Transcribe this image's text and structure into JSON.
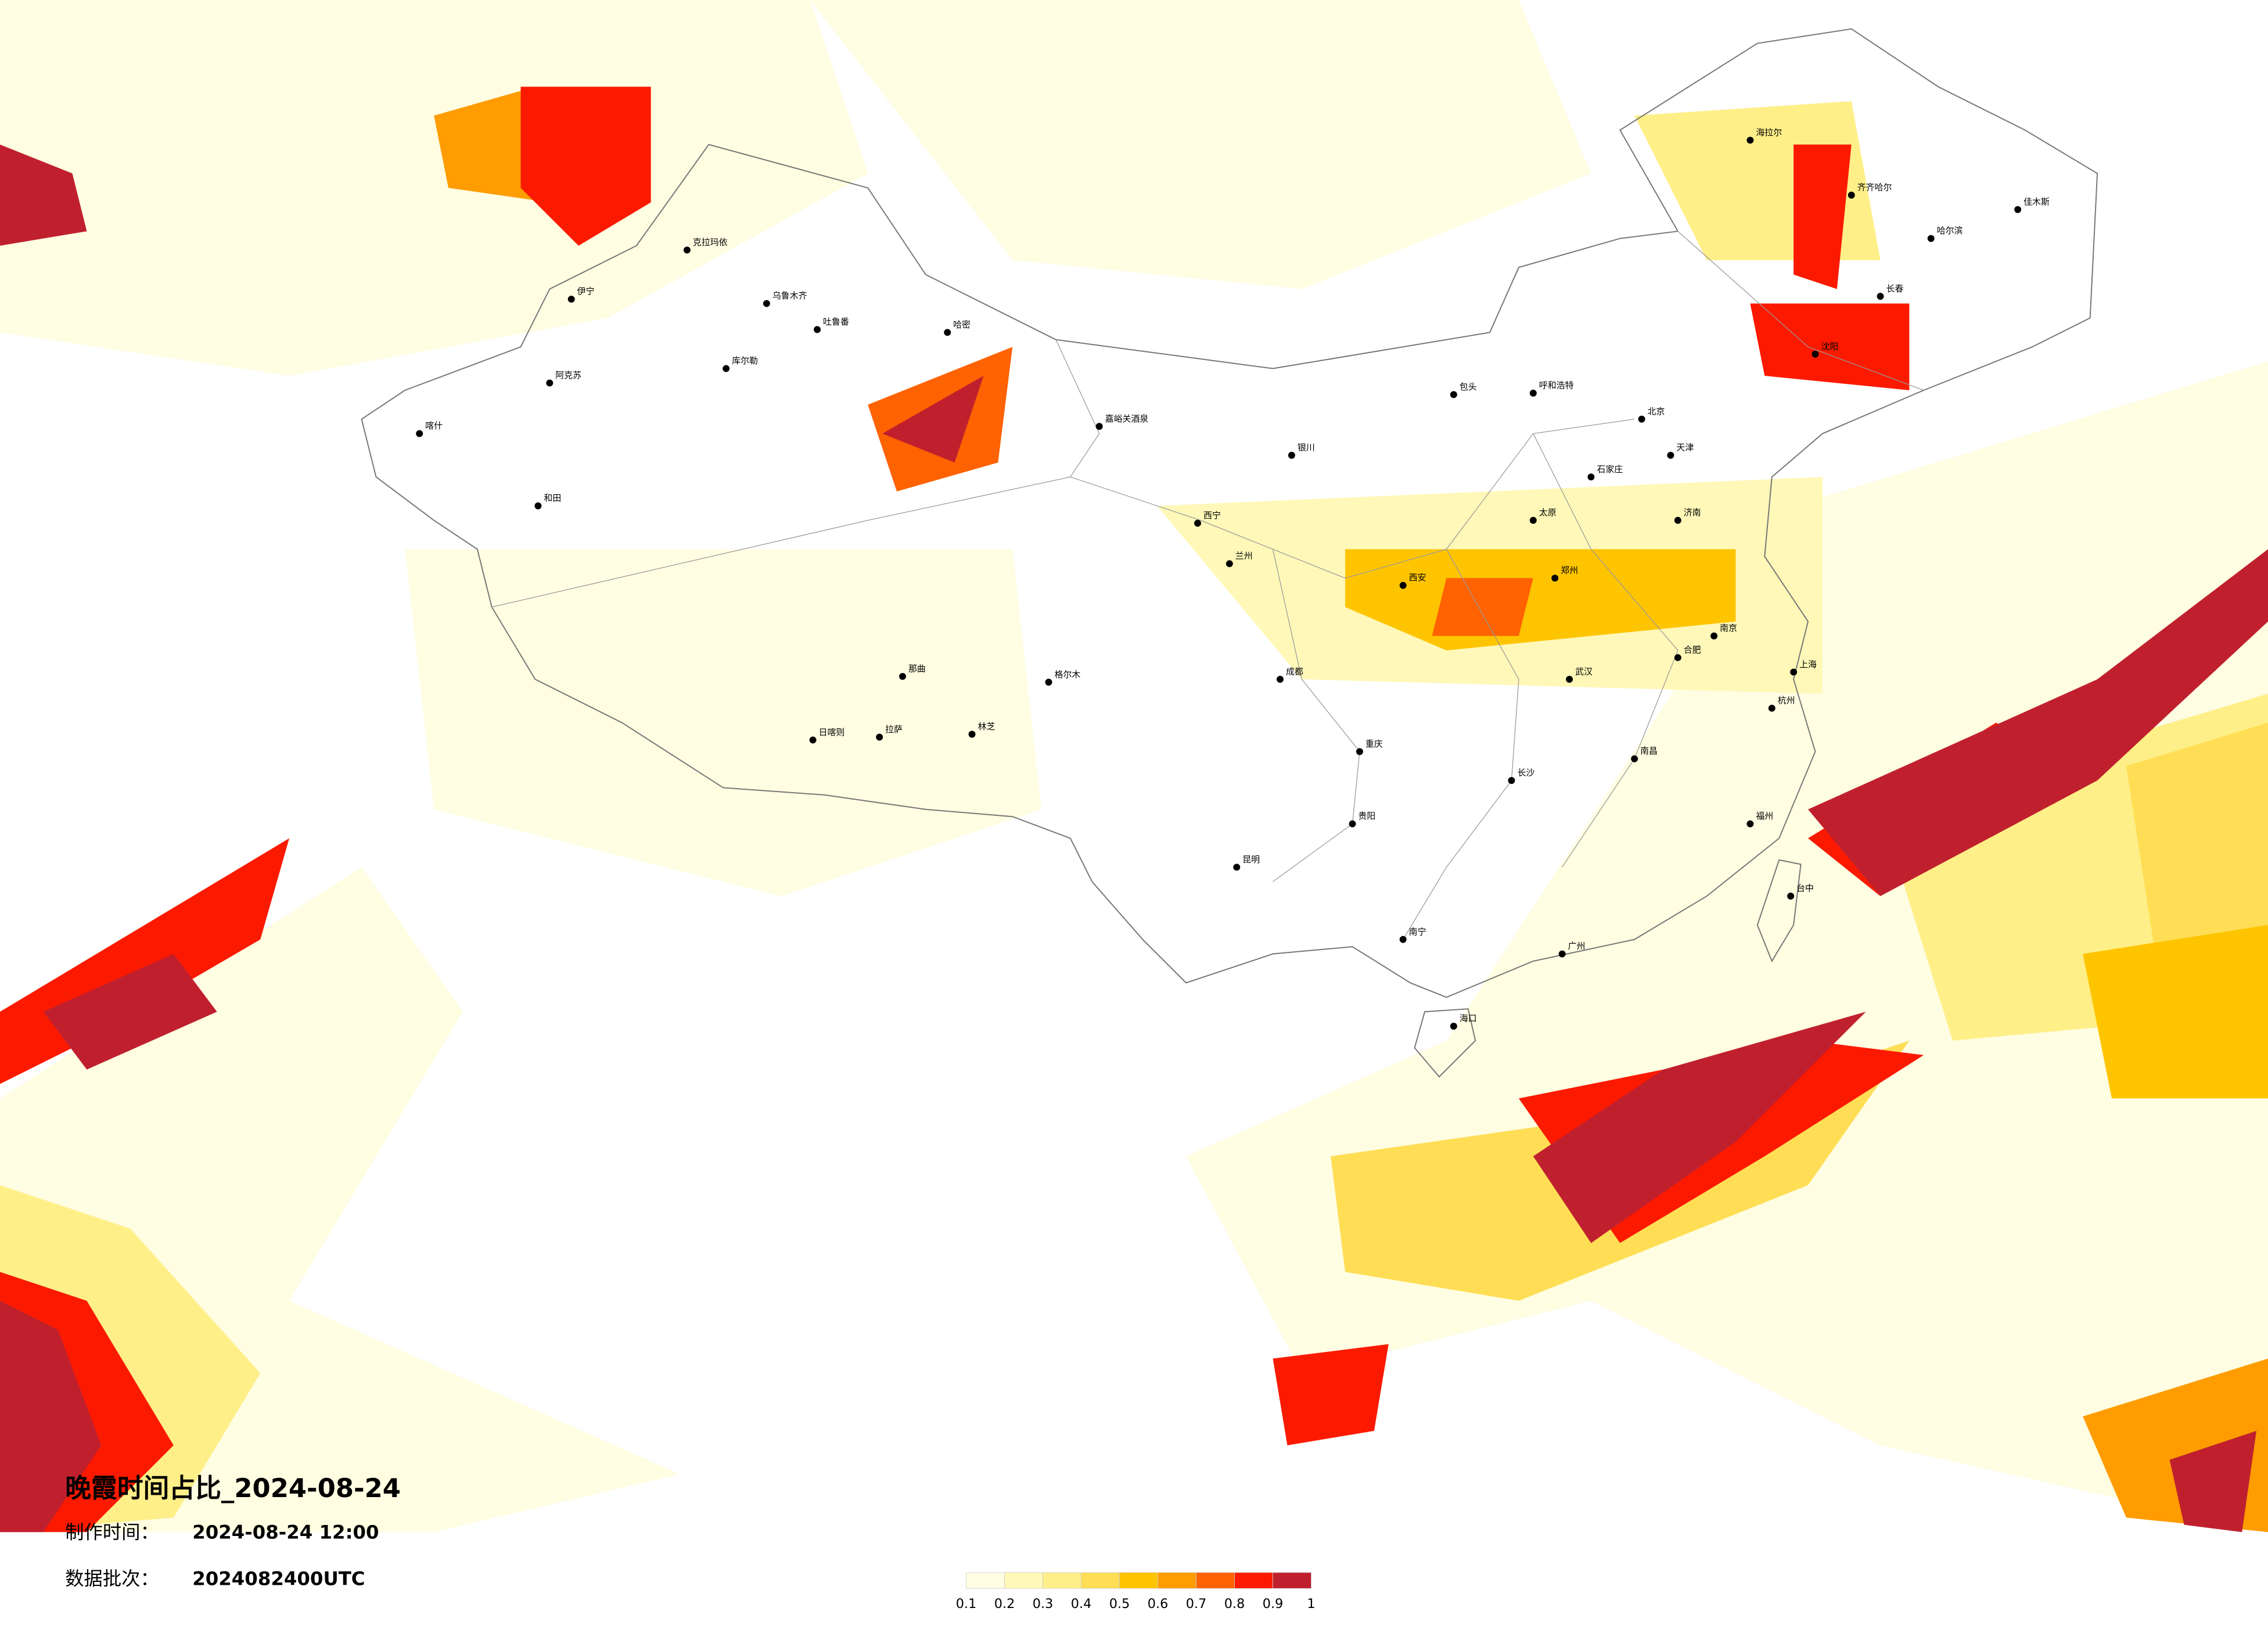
{
  "title": "晚霞时间占比_2024-08-24",
  "production_label": "制作时间：",
  "production_time": "2024-08-24 12:00",
  "batch_label": "数据批次：",
  "batch": "2024082400UTC",
  "colorbar": {
    "colors": [
      "#fffde2",
      "#fff8b8",
      "#ffef88",
      "#ffde55",
      "#ffc400",
      "#ff9c00",
      "#ff6200",
      "#fb1a00",
      "#c0202e"
    ],
    "ticks": [
      0.1,
      0.2,
      0.3,
      0.4,
      0.5,
      0.6,
      0.7,
      0.8,
      0.9,
      1
    ]
  },
  "cities": [
    "克拉玛依",
    "乌鲁木齐",
    "伊宁",
    "阿克苏",
    "喀什",
    "和田",
    "库尔勒",
    "哈密",
    "吐鲁番",
    "嘉峪关酒泉",
    "格尔木",
    "拉萨",
    "日喀则",
    "那曲",
    "林芝",
    "西宁",
    "兰州",
    "银川",
    "呼和浩特",
    "包头",
    "北京",
    "天津",
    "石家庄",
    "太原",
    "济南",
    "郑州",
    "西安",
    "成都",
    "重庆",
    "贵阳",
    "昆明",
    "南宁",
    "广州",
    "长沙",
    "武汉",
    "南京",
    "上海",
    "杭州",
    "福州",
    "南昌",
    "合肥",
    "海口",
    "沈阳",
    "长春",
    "哈尔滨",
    "齐齐哈尔",
    "海拉尔",
    "佳木斯",
    "台中"
  ]
}
